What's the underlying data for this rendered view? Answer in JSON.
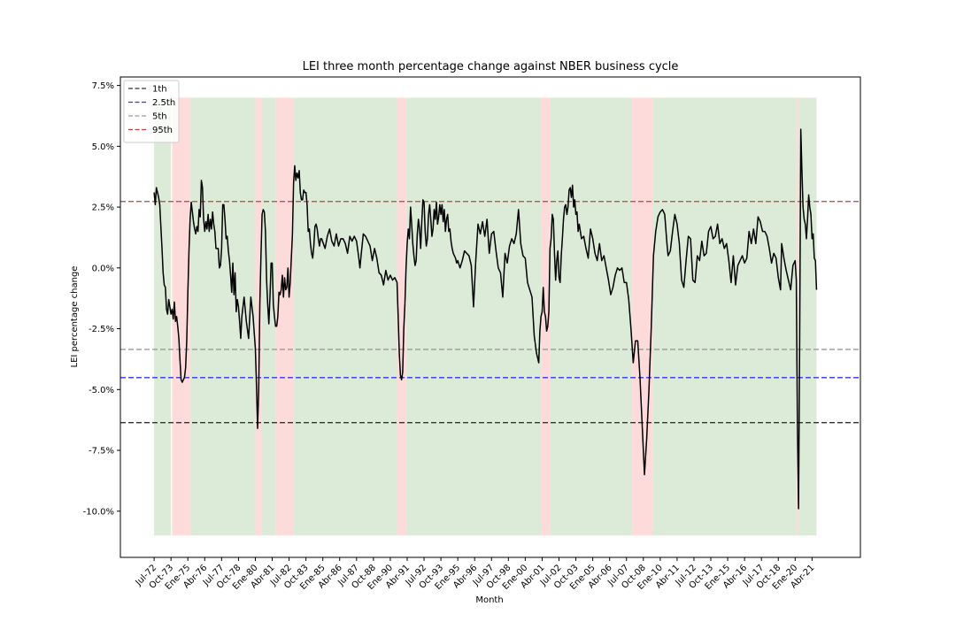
{
  "chart_data": {
    "type": "line",
    "title": "LEI three month percentage change against NBER business cycle",
    "x_label": "Month",
    "y_label": "LEI percentage change",
    "color": "#000000",
    "xlim": [
      "1970-01",
      "2024-11"
    ],
    "ylim": [
      -11.9,
      7.85
    ],
    "yticks": [
      {
        "value": -10,
        "label": "-10.0%"
      },
      {
        "value": -7.5,
        "label": "-7.5%"
      },
      {
        "value": -5,
        "label": "-5.0%"
      },
      {
        "value": -2.5,
        "label": "-2.5%"
      },
      {
        "value": 0,
        "label": "0.0%"
      },
      {
        "value": 2.5,
        "label": "2.5%"
      },
      {
        "value": 5,
        "label": "5.0%"
      },
      {
        "value": 7.5,
        "label": "7.5%"
      }
    ],
    "xticks": [
      {
        "value": "1972-07",
        "label": "Jul-72"
      },
      {
        "value": "1973-10",
        "label": "Oct-73"
      },
      {
        "value": "1975-01",
        "label": "Ene-75"
      },
      {
        "value": "1976-04",
        "label": "Abr-76"
      },
      {
        "value": "1977-07",
        "label": "Jul-77"
      },
      {
        "value": "1978-10",
        "label": "Oct-78"
      },
      {
        "value": "1980-01",
        "label": "Ene-80"
      },
      {
        "value": "1981-04",
        "label": "Abr-81"
      },
      {
        "value": "1982-07",
        "label": "Jul-82"
      },
      {
        "value": "1983-10",
        "label": "Oct-83"
      },
      {
        "value": "1985-01",
        "label": "Ene-85"
      },
      {
        "value": "1986-04",
        "label": "Abr-86"
      },
      {
        "value": "1987-07",
        "label": "Jul-87"
      },
      {
        "value": "1988-10",
        "label": "Oct-88"
      },
      {
        "value": "1990-01",
        "label": "Ene-90"
      },
      {
        "value": "1991-04",
        "label": "Abr-91"
      },
      {
        "value": "1992-07",
        "label": "Jul-92"
      },
      {
        "value": "1993-10",
        "label": "Oct-93"
      },
      {
        "value": "1995-01",
        "label": "Ene-95"
      },
      {
        "value": "1996-04",
        "label": "Abr-96"
      },
      {
        "value": "1997-07",
        "label": "Jul-97"
      },
      {
        "value": "1998-10",
        "label": "Oct-98"
      },
      {
        "value": "2000-01",
        "label": "Ene-00"
      },
      {
        "value": "2001-04",
        "label": "Abr-01"
      },
      {
        "value": "2002-07",
        "label": "Jul-02"
      },
      {
        "value": "2003-10",
        "label": "Oct-03"
      },
      {
        "value": "2005-01",
        "label": "Ene-05"
      },
      {
        "value": "2006-04",
        "label": "Abr-06"
      },
      {
        "value": "2007-07",
        "label": "Jul-07"
      },
      {
        "value": "2008-10",
        "label": "Oct-08"
      },
      {
        "value": "2010-01",
        "label": "Ene-10"
      },
      {
        "value": "2011-04",
        "label": "Abr-11"
      },
      {
        "value": "2012-07",
        "label": "Jul-12"
      },
      {
        "value": "2013-10",
        "label": "Oct-13"
      },
      {
        "value": "2015-01",
        "label": "Ene-15"
      },
      {
        "value": "2016-04",
        "label": "Abr-16"
      },
      {
        "value": "2017-07",
        "label": "Jul-17"
      },
      {
        "value": "2018-10",
        "label": "Oct-18"
      },
      {
        "value": "2020-01",
        "label": "Ene-20"
      },
      {
        "value": "2021-04",
        "label": "Abr-21"
      }
    ],
    "legend": "upper left",
    "hlines": [
      {
        "name": "1th",
        "value": -6.36,
        "color": "#333333"
      },
      {
        "name": "2.5th",
        "value": -4.51,
        "color": "#3333ee"
      },
      {
        "name": "5th",
        "value": -3.35,
        "color": "#999999"
      },
      {
        "name": "95th",
        "value": 2.73,
        "color": "#b5473a"
      }
    ],
    "shading": {
      "ylim": [
        -11,
        7
      ],
      "expansion_color": "#d9ead6",
      "recession_color": "#fdd9d9",
      "expansions": [
        [
          "1972-07",
          "1973-10"
        ],
        [
          "1975-03",
          "1980-01"
        ],
        [
          "1980-07",
          "1981-07"
        ],
        [
          "1982-11",
          "1990-07"
        ],
        [
          "1991-03",
          "2001-03"
        ],
        [
          "2001-11",
          "2007-12"
        ],
        [
          "2009-06",
          "2020-02"
        ],
        [
          "2020-04",
          "2021-08"
        ]
      ],
      "recessions": [
        [
          "1973-11",
          "1975-03"
        ],
        [
          "1980-01",
          "1980-07"
        ],
        [
          "1981-07",
          "1982-11"
        ],
        [
          "1990-07",
          "1991-03"
        ],
        [
          "2001-03",
          "2001-11"
        ],
        [
          "2007-12",
          "2009-06"
        ],
        [
          "2020-02",
          "2020-04"
        ]
      ]
    },
    "x": [
      "1972-07",
      "1972-08",
      "1972-09",
      "1972-11",
      "1972-12",
      "1973-02",
      "1973-03",
      "1973-04",
      "1973-05",
      "1973-06",
      "1973-07",
      "1973-08",
      "1973-09",
      "1973-10",
      "1973-11",
      "1973-12",
      "1974-01",
      "1974-02",
      "1974-03",
      "1974-04",
      "1974-05",
      "1974-06",
      "1974-07",
      "1974-08",
      "1974-09",
      "1974-10",
      "1974-11",
      "1974-12",
      "1975-01",
      "1975-02",
      "1975-03",
      "1975-04",
      "1975-05",
      "1975-06",
      "1975-07",
      "1975-08",
      "1975-09",
      "1975-10",
      "1975-11",
      "1975-12",
      "1976-01",
      "1976-02",
      "1976-03",
      "1976-04",
      "1976-05",
      "1976-06",
      "1976-07",
      "1976-08",
      "1976-09",
      "1976-10",
      "1976-11",
      "1976-12",
      "1977-01",
      "1977-02",
      "1977-04",
      "1977-05",
      "1977-06",
      "1977-07",
      "1977-08",
      "1977-09",
      "1977-10",
      "1977-11",
      "1977-12",
      "1978-01",
      "1978-02",
      "1978-03",
      "1978-04",
      "1978-05",
      "1978-06",
      "1978-07",
      "1978-08",
      "1978-09",
      "1978-10",
      "1978-11",
      "1978-12",
      "1979-01",
      "1979-03",
      "1979-05",
      "1979-07",
      "1979-09",
      "1979-11",
      "1980-01",
      "1980-02",
      "1980-03",
      "1980-04",
      "1980-05",
      "1980-06",
      "1980-07",
      "1980-08",
      "1980-09",
      "1980-10",
      "1980-11",
      "1980-12",
      "1981-01",
      "1981-02",
      "1981-03",
      "1981-04",
      "1981-05",
      "1981-06",
      "1981-07",
      "1981-08",
      "1981-09",
      "1981-10",
      "1981-11",
      "1981-12",
      "1982-01",
      "1982-02",
      "1982-03",
      "1982-04",
      "1982-05",
      "1982-06",
      "1982-07",
      "1982-08",
      "1982-09",
      "1982-10",
      "1982-11",
      "1982-12",
      "1983-01",
      "1983-02",
      "1983-03",
      "1983-04",
      "1983-05",
      "1983-06",
      "1983-07",
      "1983-08",
      "1983-09",
      "1983-10",
      "1983-11",
      "1983-12",
      "1984-01",
      "1984-02",
      "1984-03",
      "1984-04",
      "1984-05",
      "1984-06",
      "1984-07",
      "1984-08",
      "1984-09",
      "1984-10",
      "1984-11",
      "1984-12",
      "1985-03",
      "1985-05",
      "1985-07",
      "1985-09",
      "1985-11",
      "1986-01",
      "1986-03",
      "1986-05",
      "1986-07",
      "1986-09",
      "1986-11",
      "1987-01",
      "1987-03",
      "1987-05",
      "1987-07",
      "1987-09",
      "1987-10",
      "1987-11",
      "1988-01",
      "1988-03",
      "1988-05",
      "1988-07",
      "1988-09",
      "1988-11",
      "1989-01",
      "1989-03",
      "1989-05",
      "1989-07",
      "1989-09",
      "1989-11",
      "1990-01",
      "1990-03",
      "1990-05",
      "1990-07",
      "1990-08",
      "1990-09",
      "1990-10",
      "1990-11",
      "1990-12",
      "1991-01",
      "1991-02",
      "1991-03",
      "1991-04",
      "1991-05",
      "1991-06",
      "1991-07",
      "1991-08",
      "1991-09",
      "1991-10",
      "1991-11",
      "1991-12",
      "1992-01",
      "1992-02",
      "1992-03",
      "1992-04",
      "1992-05",
      "1992-06",
      "1992-07",
      "1992-08",
      "1992-09",
      "1992-10",
      "1992-11",
      "1992-12",
      "1993-01",
      "1993-02",
      "1993-03",
      "1993-04",
      "1993-05",
      "1993-06",
      "1993-07",
      "1993-08",
      "1993-09",
      "1993-10",
      "1993-11",
      "1993-12",
      "1994-01",
      "1994-02",
      "1994-03",
      "1994-04",
      "1994-05",
      "1994-06",
      "1994-07",
      "1994-08",
      "1994-09",
      "1994-10",
      "1994-11",
      "1994-12",
      "1995-01",
      "1995-03",
      "1995-05",
      "1995-07",
      "1995-09",
      "1995-11",
      "1996-01",
      "1996-03",
      "1996-05",
      "1996-07",
      "1996-09",
      "1996-11",
      "1997-01",
      "1997-03",
      "1997-05",
      "1997-07",
      "1997-09",
      "1997-11",
      "1998-01",
      "1998-03",
      "1998-05",
      "1998-07",
      "1998-09",
      "1998-11",
      "1999-01",
      "1999-03",
      "1999-05",
      "1999-07",
      "1999-09",
      "1999-11",
      "2000-01",
      "2000-03",
      "2000-05",
      "2000-07",
      "2000-09",
      "2000-11",
      "2001-01",
      "2001-02",
      "2001-03",
      "2001-04",
      "2001-05",
      "2001-06",
      "2001-07",
      "2001-08",
      "2001-09",
      "2001-10",
      "2001-11",
      "2001-12",
      "2002-01",
      "2002-02",
      "2002-03",
      "2002-04",
      "2002-05",
      "2002-06",
      "2002-07",
      "2002-08",
      "2002-09",
      "2002-10",
      "2002-11",
      "2002-12",
      "2003-01",
      "2003-02",
      "2003-03",
      "2003-04",
      "2003-05",
      "2003-06",
      "2003-07",
      "2003-08",
      "2003-09",
      "2003-10",
      "2003-11",
      "2003-12",
      "2004-01",
      "2004-03",
      "2004-05",
      "2004-07",
      "2004-09",
      "2004-11",
      "2005-01",
      "2005-03",
      "2005-05",
      "2005-07",
      "2005-09",
      "2005-11",
      "2006-01",
      "2006-03",
      "2006-05",
      "2006-07",
      "2006-09",
      "2006-11",
      "2007-01",
      "2007-03",
      "2007-05",
      "2007-07",
      "2007-09",
      "2007-11",
      "2008-01",
      "2008-03",
      "2008-05",
      "2008-07",
      "2008-09",
      "2008-11",
      "2009-01",
      "2009-03",
      "2009-05",
      "2009-07",
      "2009-09",
      "2009-11",
      "2010-01",
      "2010-03",
      "2010-05",
      "2010-07",
      "2010-08",
      "2010-10",
      "2010-12",
      "2011-02",
      "2011-04",
      "2011-06",
      "2011-08",
      "2011-10",
      "2011-12",
      "2012-02",
      "2012-04",
      "2012-06",
      "2012-08",
      "2012-10",
      "2012-12",
      "2013-02",
      "2013-04",
      "2013-06",
      "2013-08",
      "2013-10",
      "2013-12",
      "2014-02",
      "2014-04",
      "2014-06",
      "2014-08",
      "2014-10",
      "2014-12",
      "2015-02",
      "2015-04",
      "2015-06",
      "2015-08",
      "2015-10",
      "2015-12",
      "2016-02",
      "2016-04",
      "2016-06",
      "2016-08",
      "2016-10",
      "2016-12",
      "2017-02",
      "2017-04",
      "2017-06",
      "2017-08",
      "2017-10",
      "2017-12",
      "2018-02",
      "2018-04",
      "2018-06",
      "2018-08",
      "2018-10",
      "2018-12",
      "2019-01",
      "2019-03",
      "2019-05",
      "2019-07",
      "2019-09",
      "2019-11",
      "2020-01",
      "2020-02",
      "2020-03",
      "2020-04",
      "2020-05",
      "2020-06",
      "2020-07",
      "2020-08",
      "2020-09",
      "2020-10",
      "2020-11",
      "2020-12",
      "2021-01",
      "2021-02",
      "2021-03",
      "2021-04",
      "2021-05",
      "2021-06",
      "2021-07",
      "2021-08"
    ],
    "values": [
      3.1,
      2.6,
      3.3,
      2.9,
      2.6,
      0.8,
      -0.2,
      -0.7,
      -0.8,
      -1.7,
      -1.9,
      -1.3,
      -1.6,
      -1.9,
      -1.7,
      -2.1,
      -1.4,
      -2.2,
      -2.0,
      -2.4,
      -2.9,
      -3.8,
      -4.6,
      -4.7,
      -4.6,
      -4.5,
      -4.1,
      -3.0,
      -1.0,
      0.7,
      2.0,
      2.7,
      2.3,
      1.9,
      1.6,
      1.4,
      1.7,
      1.5,
      2.4,
      2.1,
      3.6,
      3.3,
      2.0,
      1.5,
      1.9,
      1.6,
      2.2,
      1.5,
      2.0,
      1.6,
      2.3,
      1.8,
      1.5,
      0.8,
      0.8,
      0.0,
      0.1,
      0.8,
      2.6,
      2.6,
      2.0,
      1.2,
      1.3,
      0.7,
      0.3,
      -0.3,
      -1.0,
      0.2,
      -1.1,
      -0.2,
      -1.8,
      -1.3,
      -1.6,
      -2.2,
      -2.9,
      -2.0,
      -1.2,
      -2.2,
      -2.9,
      -1.2,
      -2.0,
      -3.3,
      -4.8,
      -6.6,
      -5.0,
      -1.5,
      0.5,
      2.2,
      2.4,
      2.3,
      1.5,
      -0.5,
      -1.5,
      -2.3,
      -1.2,
      0.2,
      0.2,
      -1.5,
      -2.0,
      -2.4,
      -2.4,
      -2.0,
      -1.0,
      -1.1,
      -0.9,
      -0.3,
      -1.2,
      -0.4,
      -0.9,
      -0.8,
      0.0,
      -1.2,
      -0.6,
      0.4,
      1.4,
      3.5,
      4.2,
      3.6,
      3.9,
      3.7,
      4.0,
      3.1,
      2.8,
      2.8,
      3.2,
      3.1,
      3.1,
      2.6,
      1.5,
      1.6,
      1.0,
      0.6,
      0.4,
      0.9,
      1.7,
      1.8,
      1.6,
      1.2,
      0.9,
      1.2,
      1.2,
      0.8,
      1.3,
      1.6,
      1.1,
      0.9,
      1.4,
      0.9,
      1.2,
      1.2,
      1.0,
      0.6,
      1.3,
      1.1,
      1.3,
      1.1,
      0.4,
      0.0,
      0.5,
      1.4,
      1.3,
      1.1,
      0.9,
      0.3,
      0.8,
      0.4,
      -0.2,
      -0.3,
      -0.7,
      -0.1,
      -0.5,
      -0.3,
      -0.5,
      -0.4,
      -0.6,
      -2.0,
      -3.5,
      -4.4,
      -4.6,
      -4.3,
      -2.5,
      -1.5,
      0.0,
      1.0,
      1.6,
      1.2,
      2.5,
      1.8,
      1.0,
      0.5,
      0.1,
      0.3,
      1.4,
      2.0,
      1.6,
      0.8,
      1.9,
      2.8,
      2.7,
      1.5,
      0.9,
      1.2,
      2.2,
      2.6,
      2.0,
      1.3,
      1.6,
      2.4,
      2.0,
      2.7,
      1.8,
      2.1,
      2.6,
      2.2,
      2.6,
      1.9,
      2.4,
      1.5,
      2.0,
      2.2,
      1.5,
      1.6,
      1.1,
      0.8,
      0.6,
      0.5,
      0.4,
      0.2,
      0.3,
      0.0,
      0.3,
      0.7,
      0.6,
      0.5,
      0.1,
      -1.6,
      0.3,
      1.8,
      1.4,
      1.9,
      1.3,
      2.0,
      0.6,
      1.4,
      1.5,
      0.7,
      0.0,
      -0.2,
      -1.2,
      0.6,
      0.2,
      0.9,
      1.2,
      1.0,
      1.4,
      2.4,
      1.0,
      0.5,
      0.4,
      -0.6,
      -0.9,
      -1.2,
      -2.8,
      -3.5,
      -3.9,
      -2.6,
      -2.0,
      -1.8,
      -0.8,
      -1.8,
      -2.0,
      -2.6,
      -2.4,
      -1.8,
      0.8,
      1.2,
      2.2,
      2.0,
      0.6,
      -0.5,
      0.3,
      0.7,
      -0.4,
      -0.6,
      0.5,
      1.2,
      2.0,
      2.5,
      2.6,
      2.2,
      2.5,
      3.2,
      3.3,
      2.9,
      3.4,
      2.5,
      2.8,
      2.2,
      2.3,
      1.5,
      1.8,
      1.2,
      1.3,
      0.8,
      0.4,
      1.6,
      1.2,
      0.6,
      0.3,
      1.0,
      0.3,
      0.5,
      0.0,
      -0.5,
      -1.1,
      -0.8,
      -0.3,
      0.0,
      -0.1,
      0.0,
      -0.6,
      -0.6,
      -1.3,
      -2.5,
      -3.9,
      -3.0,
      -3.0,
      -4.5,
      -6.5,
      -8.5,
      -7.0,
      -5.0,
      -2.5,
      0.5,
      1.5,
      2.1,
      2.3,
      2.4,
      2.2,
      1.0,
      0.5,
      0.7,
      1.5,
      2.2,
      1.8,
      1.0,
      -0.5,
      -0.8,
      0.3,
      1.3,
      1.2,
      -0.5,
      -0.6,
      0.5,
      0.3,
      1.1,
      0.5,
      0.6,
      1.5,
      1.7,
      1.2,
      1.3,
      1.8,
      1.0,
      1.2,
      0.8,
      1.0,
      0.3,
      -0.6,
      0.5,
      -0.7,
      0.1,
      0.3,
      0.5,
      0.2,
      0.4,
      1.5,
      1.0,
      1.6,
      1.0,
      2.1,
      1.9,
      1.5,
      1.5,
      1.3,
      0.8,
      0.2,
      0.6,
      0.4,
      -0.4,
      -0.9,
      1.0,
      0.4,
      -0.1,
      -0.5,
      -0.9,
      0.1,
      0.3,
      -0.5,
      -6.5,
      -9.9,
      -3.0,
      5.7,
      4.0,
      2.5,
      2.0,
      1.8,
      1.2,
      2.0,
      3.0,
      2.5,
      2.2,
      1.2,
      1.4,
      0.4,
      0.3,
      -0.9
    ]
  }
}
